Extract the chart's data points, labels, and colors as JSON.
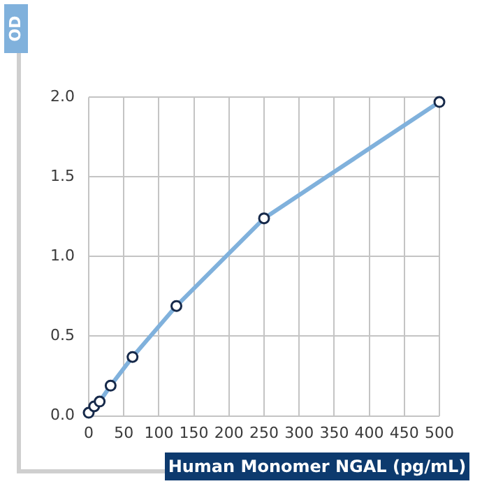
{
  "chart_data": {
    "type": "line",
    "xlabel": "Human Monomer NGAL (pg/mL)",
    "ylabel": "OD",
    "x": [
      0,
      7.8,
      15.6,
      31.25,
      62.5,
      125,
      250,
      500
    ],
    "series": [
      {
        "color": "#80b1dc",
        "values": [
          0.02,
          0.06,
          0.09,
          0.19,
          0.37,
          0.69,
          1.24,
          1.97
        ]
      }
    ],
    "xlim": [
      0,
      500
    ],
    "xticks": [
      0,
      50,
      100,
      150,
      200,
      250,
      300,
      350,
      400,
      450,
      500
    ],
    "ylim": [
      0,
      2
    ],
    "yticks": [
      {
        "value": 0,
        "label": "0.0"
      },
      {
        "value": 0.5,
        "label": "0.5"
      },
      {
        "value": 1,
        "label": "1.0"
      },
      {
        "value": 1.5,
        "label": "1.5"
      },
      {
        "value": 2,
        "label": "2.0"
      }
    ],
    "grid": true,
    "marker": "circle",
    "legend": false
  }
}
